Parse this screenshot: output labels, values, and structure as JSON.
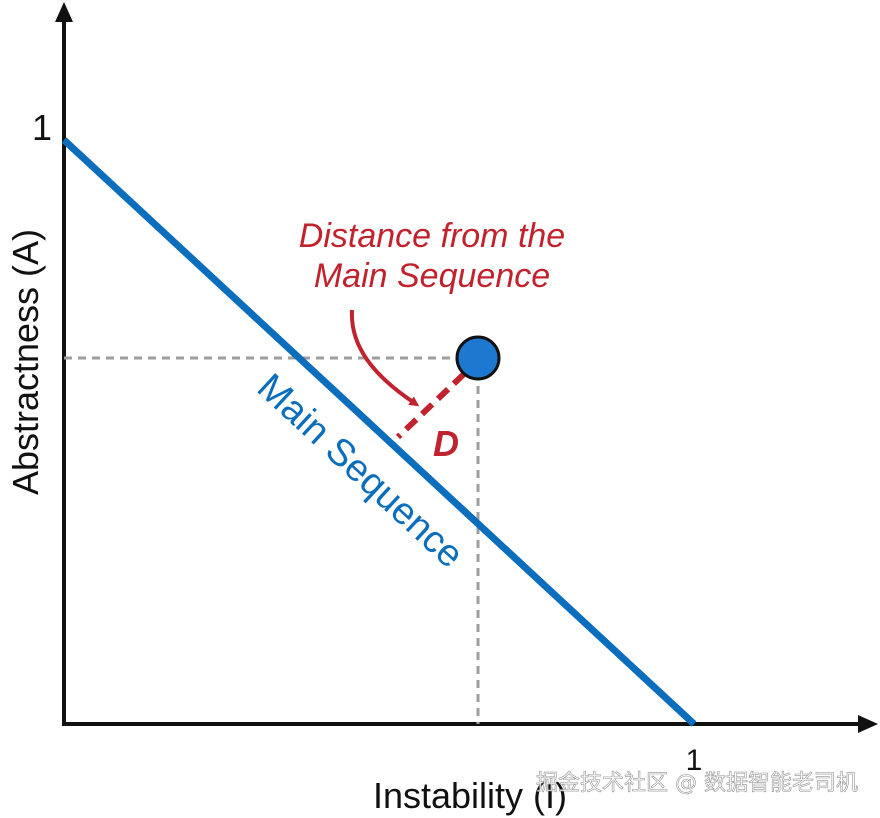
{
  "diagram": {
    "y_axis": {
      "label": "Abstractness (A)",
      "max_tick": "1"
    },
    "x_axis": {
      "label": "Instability (I)",
      "max_tick": "1"
    },
    "main_sequence_label": "Main Sequence",
    "annotation": {
      "line1": "Distance from the",
      "line2": "Main Sequence"
    },
    "distance_label": "D",
    "colors": {
      "axis": "#111111",
      "main_sequence": "#0a6ebd",
      "point": "#1d78cf",
      "annotation": "#c0232d",
      "guide": "#9e9e9e"
    }
  },
  "watermark": "掘金技术社区 @ 数据智能老司机"
}
